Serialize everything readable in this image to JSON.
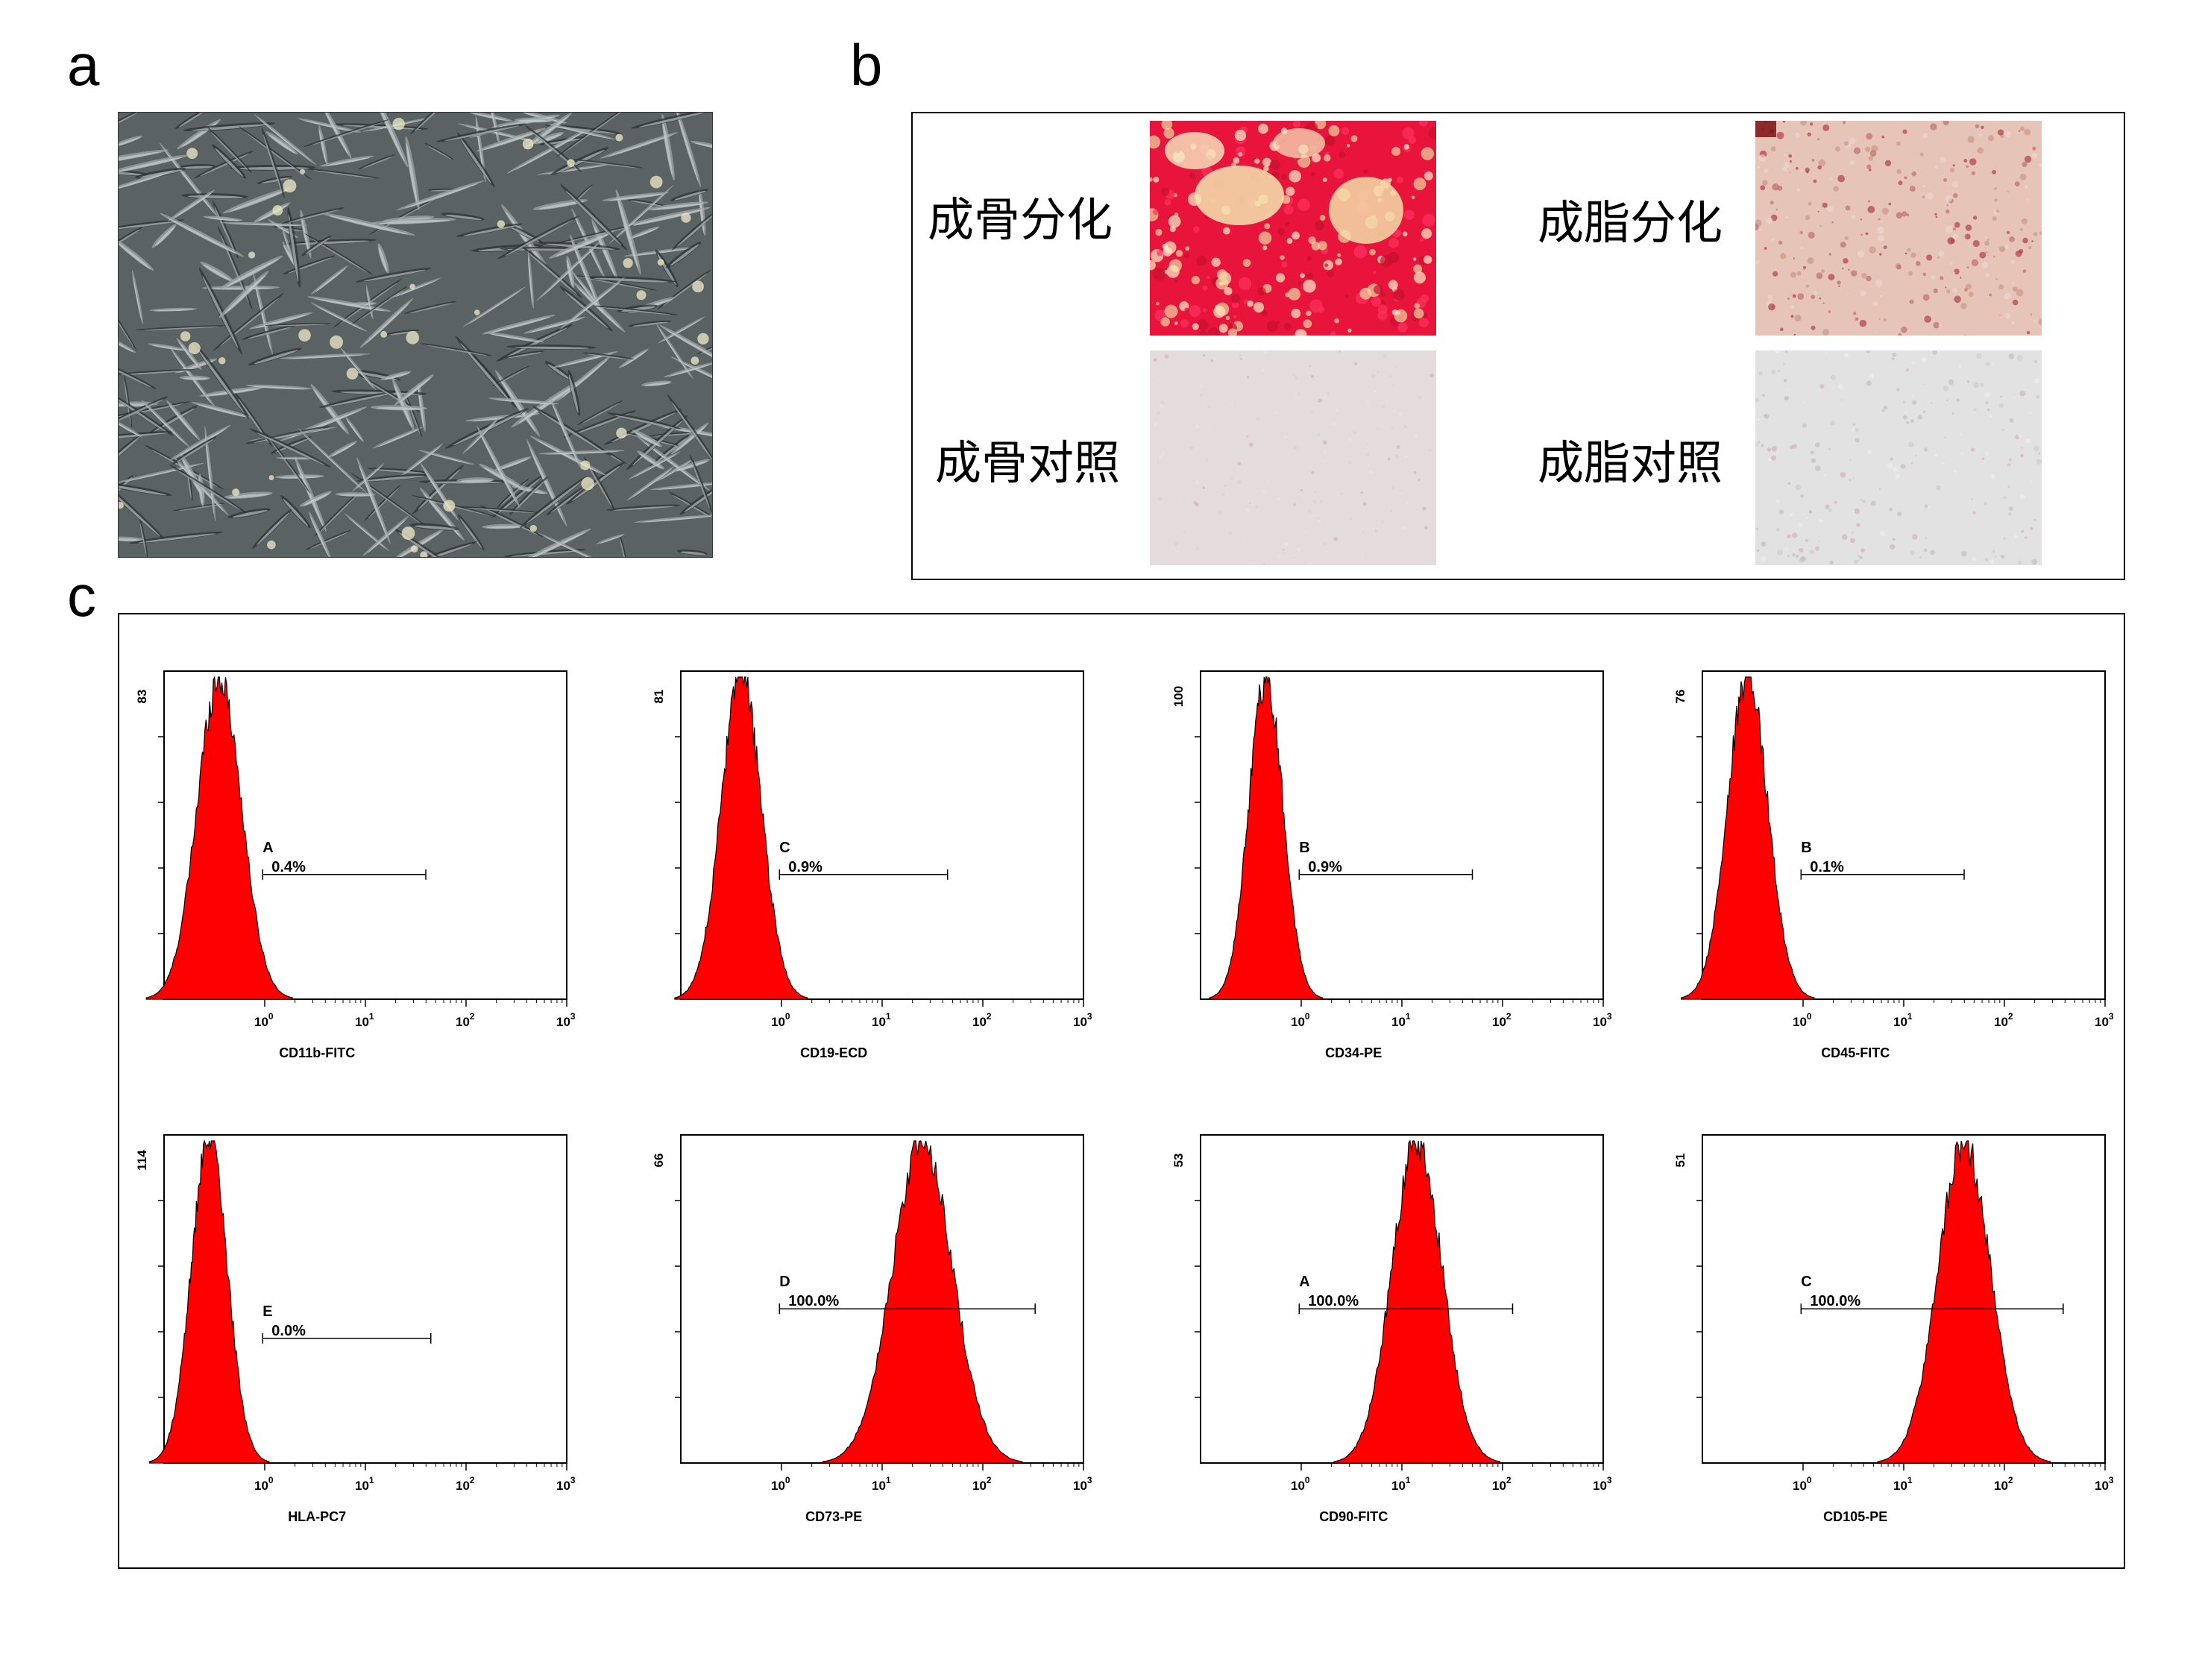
{
  "panels": {
    "a": {
      "letter": "a"
    },
    "b": {
      "letter": "b",
      "labels": {
        "osteo_diff": "成骨分化",
        "adipo_diff": "成脂分化",
        "osteo_ctrl": "成骨对照",
        "adipo_ctrl": "成脂对照"
      }
    },
    "c": {
      "letter": "c"
    }
  },
  "colors": {
    "histogram_fill": "#ff0000",
    "alizarin": "#e8103a",
    "oil_red": "#a0202a"
  },
  "chart_data": [
    {
      "type": "area",
      "marker": "CD11b-FITC",
      "ymax_label": "83",
      "x_ticks": [
        "10^0",
        "10^1",
        "10^2",
        "10^3"
      ],
      "gate": "A",
      "percent": "0.4%",
      "peak_x_log": -0.45,
      "width_log": 0.22
    },
    {
      "type": "area",
      "marker": "CD19-ECD",
      "ymax_label": "81",
      "x_ticks": [
        "10^0",
        "10^1",
        "10^2",
        "10^3"
      ],
      "gate": "C",
      "percent": "0.9%",
      "peak_x_log": -0.4,
      "width_log": 0.2
    },
    {
      "type": "area",
      "marker": "CD34-PE",
      "ymax_label": "100",
      "x_ticks": [
        "10^0",
        "10^1",
        "10^2",
        "10^3"
      ],
      "gate": "B",
      "percent": "0.9%",
      "peak_x_log": -0.35,
      "width_log": 0.17
    },
    {
      "type": "area",
      "marker": "CD45-FITC",
      "ymax_label": "76",
      "x_ticks": [
        "10^0",
        "10^1",
        "10^2",
        "10^3"
      ],
      "gate": "B",
      "percent": "0.1%",
      "peak_x_log": -0.55,
      "width_log": 0.2
    },
    {
      "type": "area",
      "marker": "HLA-PC7",
      "ymax_label": "114",
      "x_ticks": [
        "10^0",
        "10^1",
        "10^2",
        "10^3"
      ],
      "gate": "E",
      "percent": "0.0%",
      "peak_x_log": -0.55,
      "width_log": 0.18
    },
    {
      "type": "area",
      "marker": "CD73-PE",
      "ymax_label": "66",
      "x_ticks": [
        "10^0",
        "10^1",
        "10^2",
        "10^3"
      ],
      "gate": "D",
      "percent": "100.0%",
      "peak_x_log": 1.4,
      "width_log": 0.3
    },
    {
      "type": "area",
      "marker": "CD90-FITC",
      "ymax_label": "53",
      "x_ticks": [
        "10^0",
        "10^1",
        "10^2",
        "10^3"
      ],
      "gate": "A",
      "percent": "100.0%",
      "peak_x_log": 1.15,
      "width_log": 0.25
    },
    {
      "type": "area",
      "marker": "CD105-PE",
      "ymax_label": "51",
      "x_ticks": [
        "10^0",
        "10^1",
        "10^2",
        "10^3"
      ],
      "gate": "C",
      "percent": "100.0%",
      "peak_x_log": 1.6,
      "width_log": 0.26
    }
  ]
}
